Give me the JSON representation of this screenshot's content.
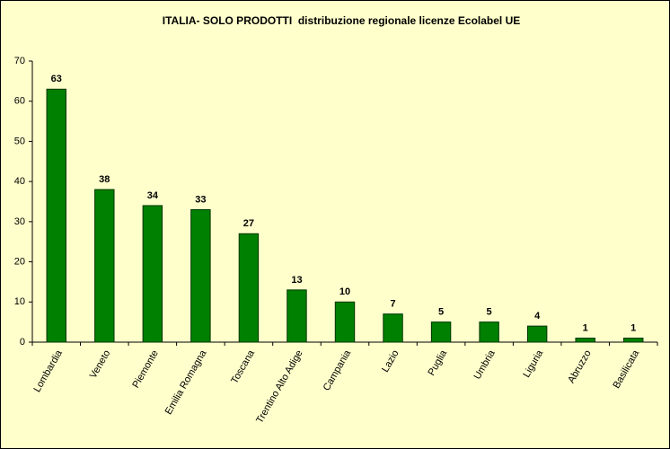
{
  "chart_data": {
    "type": "bar",
    "title": "ITALIA- SOLO PRODOTTI  distribuzione regionale licenze Ecolabel UE",
    "categories": [
      "Lombardia",
      "Veneto",
      "Piemonte",
      "Emilia Romagna",
      "Toscana",
      "Trentino Alto Adige",
      "Campania",
      "Lazio",
      "Puglia",
      "Umbria",
      "Liguria",
      "Abruzzo",
      "Basilicata"
    ],
    "values": [
      63,
      38,
      34,
      33,
      27,
      13,
      10,
      7,
      5,
      5,
      4,
      1,
      1
    ],
    "color": "#008000",
    "ylim": [
      0,
      70
    ],
    "yticks": [
      0,
      10,
      20,
      30,
      40,
      50,
      60,
      70
    ],
    "grid": false
  }
}
